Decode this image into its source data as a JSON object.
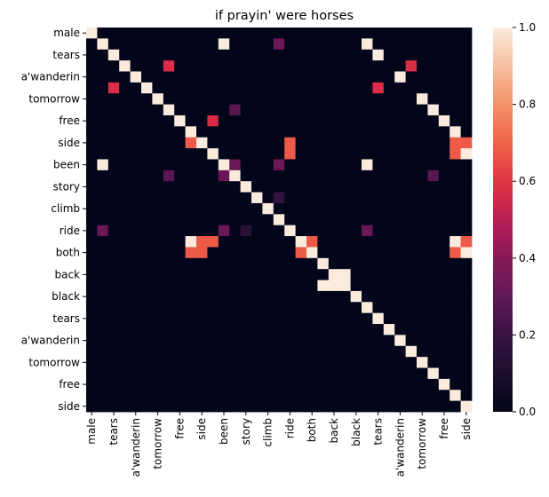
{
  "chart_data": {
    "type": "heatmap",
    "title": "if prayin' were horses",
    "xlabel": "",
    "ylabel": "",
    "n": 29,
    "row_labels": [
      "male",
      "",
      "tears",
      "",
      "a'wanderin",
      "",
      "tomorrow",
      "",
      "free",
      "",
      "side",
      "",
      "been",
      "",
      "story",
      "",
      "climb",
      "",
      "ride",
      "",
      "both",
      "",
      "back",
      "",
      "black",
      "",
      "tears",
      "",
      "a'wanderin",
      "",
      "tomorrow",
      "",
      "free",
      "",
      "side"
    ],
    "tick_labels": [
      "male",
      "tears",
      "a'wanderin",
      "tomorrow",
      "free",
      "side",
      "been",
      "story",
      "climb",
      "ride",
      "both",
      "back",
      "black",
      "tears",
      "a'wanderin",
      "tomorrow",
      "free",
      "side"
    ],
    "tick_label_every": 2,
    "colorbar": {
      "min": 0.0,
      "max": 1.0,
      "ticks": [
        "0.0",
        "0.2",
        "0.4",
        "0.6",
        "0.8",
        "1.0"
      ]
    },
    "diagonal_value": 1.0,
    "offdiag_cells": [
      [
        1,
        12,
        1.0
      ],
      [
        1,
        17,
        0.33
      ],
      [
        1,
        25,
        1.0
      ],
      [
        2,
        26,
        1.0
      ],
      [
        3,
        7,
        0.58
      ],
      [
        3,
        29,
        0.58
      ],
      [
        4,
        28,
        1.0
      ],
      [
        5,
        2,
        0.58
      ],
      [
        5,
        26,
        0.58
      ],
      [
        6,
        30,
        1.0
      ],
      [
        7,
        13,
        0.28
      ],
      [
        7,
        31,
        1.0
      ],
      [
        8,
        11,
        0.57
      ],
      [
        8,
        32,
        1.0
      ],
      [
        9,
        33,
        1.0
      ],
      [
        10,
        9,
        0.68
      ],
      [
        10,
        18,
        0.68
      ],
      [
        10,
        33,
        0.68
      ],
      [
        10,
        34,
        0.68
      ],
      [
        11,
        18,
        0.68
      ],
      [
        11,
        33,
        0.68
      ],
      [
        11,
        34,
        1.0
      ],
      [
        12,
        1,
        1.0
      ],
      [
        12,
        13,
        0.32
      ],
      [
        12,
        17,
        0.33
      ],
      [
        12,
        25,
        1.0
      ],
      [
        13,
        7,
        0.28
      ],
      [
        13,
        12,
        0.32
      ],
      [
        13,
        31,
        0.28
      ],
      [
        15,
        17,
        0.18
      ],
      [
        18,
        1,
        0.33
      ],
      [
        18,
        12,
        0.33
      ],
      [
        18,
        14,
        0.15
      ],
      [
        18,
        25,
        0.33
      ],
      [
        19,
        9,
        1.0
      ],
      [
        19,
        10,
        0.68
      ],
      [
        19,
        11,
        0.68
      ],
      [
        19,
        20,
        0.68
      ],
      [
        19,
        33,
        1.0
      ],
      [
        19,
        34,
        0.68
      ],
      [
        20,
        9,
        0.68
      ],
      [
        20,
        10,
        0.68
      ],
      [
        20,
        19,
        0.68
      ],
      [
        20,
        33,
        0.68
      ],
      [
        20,
        34,
        1.0
      ],
      [
        22,
        22,
        1.0
      ],
      [
        22,
        23,
        1.0
      ],
      [
        23,
        21,
        1.0
      ],
      [
        23,
        22,
        1.0
      ]
    ]
  }
}
